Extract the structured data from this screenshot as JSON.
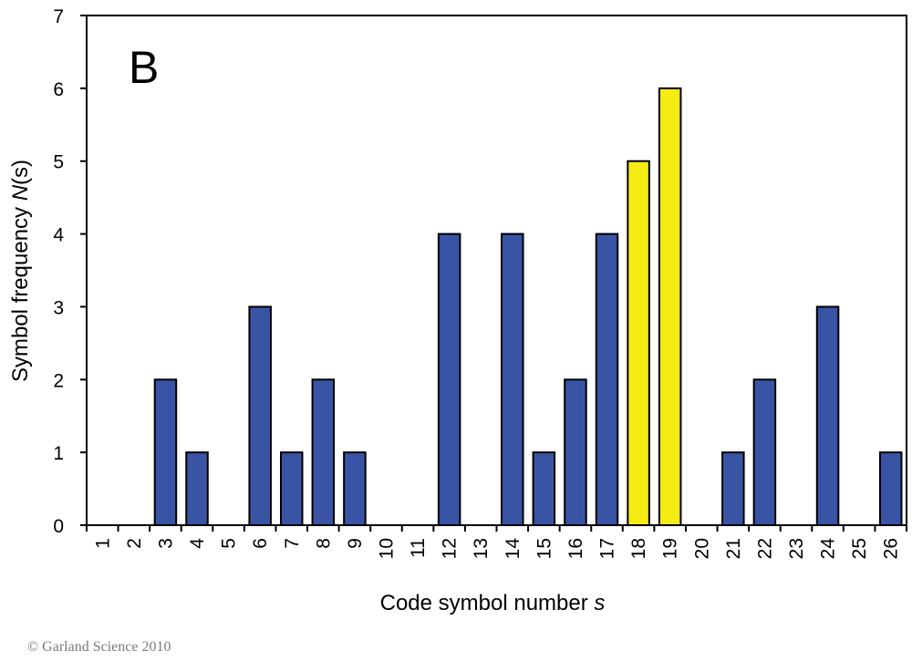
{
  "chart_data": {
    "type": "bar",
    "panel_label": "B",
    "categories": [
      "1",
      "2",
      "3",
      "4",
      "5",
      "6",
      "7",
      "8",
      "9",
      "10",
      "11",
      "12",
      "13",
      "14",
      "15",
      "16",
      "17",
      "18",
      "19",
      "20",
      "21",
      "22",
      "23",
      "24",
      "25",
      "26"
    ],
    "values": [
      0,
      0,
      2,
      1,
      0,
      3,
      1,
      2,
      1,
      0,
      0,
      4,
      0,
      4,
      1,
      2,
      4,
      5,
      6,
      0,
      1,
      2,
      0,
      3,
      0,
      1
    ],
    "highlighted_categories": [
      "18",
      "19"
    ],
    "xlabel": {
      "text": "Code symbol number ",
      "variable": "s"
    },
    "ylabel": {
      "text_before": "Symbol frequency ",
      "variable": "N",
      "text_after": "(s)"
    },
    "ylim": [
      0,
      7
    ],
    "yticks": [
      0,
      1,
      2,
      3,
      4,
      5,
      6,
      7
    ],
    "grid": false,
    "legend": "none",
    "colors": {
      "bar": "#3a54a5",
      "highlight": "#f5ec14",
      "outline": "#000000",
      "axis": "#000000"
    }
  },
  "footer": {
    "copyright": "© Garland Science 2010"
  }
}
